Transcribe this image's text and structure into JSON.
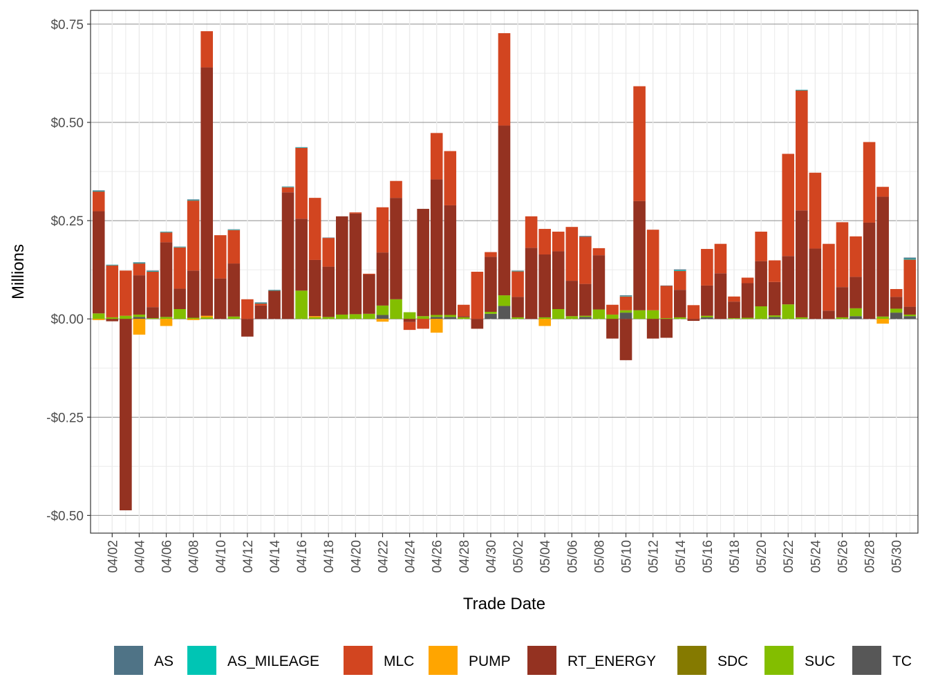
{
  "chart_data": {
    "type": "bar",
    "stacked": true,
    "xlabel": "Trade Date",
    "ylabel": "Millions",
    "ylim": [
      -0.545,
      0.785
    ],
    "yticks": [
      -0.5,
      -0.25,
      0,
      0.25,
      0.5,
      0.75
    ],
    "ytick_labels": [
      "-$0.50",
      "-$0.25",
      "$0.00",
      "$0.25",
      "$0.50",
      "$0.75"
    ],
    "categories": [
      "04/01",
      "04/02",
      "04/03",
      "04/04",
      "04/05",
      "04/06",
      "04/07",
      "04/08",
      "04/09",
      "04/10",
      "04/11",
      "04/12",
      "04/13",
      "04/14",
      "04/15",
      "04/16",
      "04/17",
      "04/18",
      "04/19",
      "04/20",
      "04/21",
      "04/22",
      "04/23",
      "04/24",
      "04/25",
      "04/26",
      "04/27",
      "04/28",
      "04/29",
      "04/30",
      "05/01",
      "05/02",
      "05/03",
      "05/04",
      "05/05",
      "05/06",
      "05/07",
      "05/08",
      "05/09",
      "05/10",
      "05/11",
      "05/12",
      "05/13",
      "05/14",
      "05/15",
      "05/16",
      "05/17",
      "05/18",
      "05/19",
      "05/20",
      "05/21",
      "05/22",
      "05/23",
      "05/24",
      "05/25",
      "05/26",
      "05/27",
      "05/28",
      "05/29",
      "05/30",
      "05/31"
    ],
    "xtick_labels": [
      "04/02",
      "04/04",
      "04/06",
      "04/08",
      "04/10",
      "04/12",
      "04/14",
      "04/16",
      "04/18",
      "04/20",
      "04/22",
      "04/24",
      "04/26",
      "04/28",
      "04/30",
      "05/02",
      "05/04",
      "05/06",
      "05/08",
      "05/10",
      "05/12",
      "05/14",
      "05/16",
      "05/18",
      "05/20",
      "05/22",
      "05/24",
      "05/26",
      "05/28",
      "05/30"
    ],
    "grid": true,
    "legend_position": "bottom",
    "series": [
      {
        "name": "TC",
        "color": "#575757",
        "values": [
          0,
          0,
          0,
          0.005,
          0,
          0,
          0,
          0,
          0,
          0,
          0,
          0,
          0,
          0,
          0,
          0,
          0,
          0,
          0,
          0,
          0,
          0.01,
          0,
          0,
          0,
          0.005,
          0.005,
          0,
          0,
          0.013,
          0.033,
          0,
          0,
          0,
          0,
          0,
          0.005,
          0,
          0,
          0.016,
          0,
          0,
          0,
          0,
          0,
          0.004,
          0,
          0,
          0,
          0,
          0.005,
          0,
          0,
          0,
          0,
          0,
          0.007,
          0,
          0,
          0.016,
          0.007
        ]
      },
      {
        "name": "SDC",
        "color": "#857a00",
        "values": [
          0,
          0,
          0,
          0,
          0,
          0,
          0,
          0,
          0,
          0,
          0,
          0,
          0,
          0,
          0,
          0,
          0,
          0,
          0,
          0,
          0,
          0,
          0,
          0,
          0,
          0,
          0,
          0,
          0,
          0,
          0,
          0,
          0,
          0,
          0,
          0,
          0,
          0,
          0,
          0,
          0,
          0,
          0,
          0,
          0,
          0,
          0,
          0,
          0,
          0,
          0,
          0,
          0,
          0,
          0,
          0,
          0,
          0,
          0,
          0,
          0
        ]
      },
      {
        "name": "SUC",
        "color": "#83be00",
        "values": [
          0.014,
          0.004,
          0.008,
          0.006,
          0.002,
          0.005,
          0.025,
          0.003,
          0.004,
          0,
          0.006,
          0,
          0,
          0,
          0,
          0.072,
          0.004,
          0.005,
          0.011,
          0.012,
          0.013,
          0.024,
          0.05,
          0.017,
          0.007,
          0.005,
          0.005,
          0.004,
          0,
          0.005,
          0.027,
          0.004,
          0,
          0.004,
          0.025,
          0.007,
          0.003,
          0.024,
          0.011,
          0.006,
          0.022,
          0.022,
          0.002,
          0.004,
          0,
          0.004,
          0,
          0.002,
          0.003,
          0.032,
          0.004,
          0.037,
          0.004,
          0,
          0,
          0.004,
          0.02,
          0,
          0.006,
          0.01,
          0.004
        ]
      },
      {
        "name": "PUMP",
        "color": "#ffa500",
        "values": [
          -0.003,
          0,
          0,
          -0.04,
          0,
          -0.018,
          0,
          -0.003,
          0.004,
          0,
          0,
          0,
          0,
          0,
          0,
          0,
          0.003,
          0,
          0,
          0,
          0,
          -0.007,
          0,
          0,
          0,
          -0.035,
          0,
          0,
          0,
          0,
          0,
          0,
          0,
          -0.018,
          0,
          0,
          0,
          0,
          0,
          0,
          0,
          0,
          0,
          0,
          0,
          0,
          0,
          0,
          0,
          0,
          0,
          0,
          0,
          0,
          0,
          0,
          0,
          0,
          -0.012,
          0,
          0
        ]
      },
      {
        "name": "RT_ENERGY",
        "color": "#943221",
        "values": [
          0.26,
          -0.006,
          -0.487,
          0.1,
          0.028,
          0.19,
          0.052,
          0.12,
          0.632,
          0.103,
          0.135,
          -0.045,
          0.034,
          0.072,
          0.322,
          0.183,
          0.143,
          0.128,
          0.25,
          0.256,
          0.1,
          0.135,
          0.258,
          -0.008,
          0.273,
          0.345,
          0.279,
          0.003,
          -0.025,
          0.14,
          0.432,
          0.052,
          0.181,
          0.16,
          0.147,
          0.09,
          0.081,
          0.138,
          -0.05,
          -0.105,
          0.278,
          -0.05,
          -0.048,
          0.07,
          -0.005,
          0.077,
          0.116,
          0.042,
          0.088,
          0.115,
          0.085,
          0.123,
          0.272,
          0.179,
          0.021,
          0.077,
          0.08,
          0.245,
          0.305,
          0.03,
          0.02
        ]
      },
      {
        "name": "MLC",
        "color": "#d24520",
        "values": [
          0.05,
          0.132,
          0.115,
          0.03,
          0.09,
          0.025,
          0.105,
          0.178,
          0.092,
          0.11,
          0.085,
          0.05,
          0.005,
          0,
          0.013,
          0.18,
          0.158,
          0.073,
          0,
          0.003,
          0.002,
          0.115,
          0.043,
          -0.02,
          -0.025,
          0.118,
          0.138,
          0.029,
          0.12,
          0.012,
          0.235,
          0.065,
          0.08,
          0.065,
          0.05,
          0.137,
          0.12,
          0.018,
          0.025,
          0.035,
          0.292,
          0.205,
          0.082,
          0.048,
          0.035,
          0.093,
          0.075,
          0.013,
          0.014,
          0.075,
          0.055,
          0.26,
          0.305,
          0.193,
          0.17,
          0.165,
          0.103,
          0.205,
          0.025,
          0.02,
          0.12
        ]
      },
      {
        "name": "AS_MILEAGE",
        "color": "#00c5b4",
        "values": [
          0.001,
          0.001,
          0,
          0.001,
          0.001,
          0.001,
          0.001,
          0.001,
          0,
          0,
          0.001,
          0,
          0.001,
          0.001,
          0.001,
          0.001,
          0,
          0,
          0,
          0,
          0,
          0,
          0,
          0,
          0,
          0,
          0,
          0,
          0,
          0,
          0,
          0.001,
          0,
          0,
          0,
          0,
          0,
          0,
          0,
          0.001,
          0,
          0,
          0,
          0.002,
          0,
          0,
          0,
          0,
          0,
          0,
          0,
          0,
          0.001,
          0,
          0,
          0,
          0,
          0,
          0,
          0,
          0.002
        ]
      },
      {
        "name": "AS",
        "color": "#4f7386",
        "values": [
          0.002,
          0.001,
          0,
          0.002,
          0.002,
          0.001,
          0.001,
          0.002,
          0,
          0,
          0.001,
          0,
          0.002,
          0.001,
          0.001,
          0.001,
          0,
          0.001,
          0,
          0,
          0,
          0,
          0,
          0,
          0,
          0,
          0,
          0,
          0,
          0,
          0,
          0.001,
          0,
          0,
          0,
          0,
          0.002,
          0,
          0,
          0.002,
          0,
          0,
          0.001,
          0.002,
          0,
          0,
          0,
          0,
          0,
          0,
          0,
          0,
          0.001,
          0,
          0,
          0,
          0,
          0,
          0,
          0,
          0.003
        ]
      }
    ],
    "legend_order": [
      "AS",
      "AS_MILEAGE",
      "MLC",
      "PUMP",
      "RT_ENERGY",
      "SDC",
      "SUC",
      "TC"
    ]
  }
}
